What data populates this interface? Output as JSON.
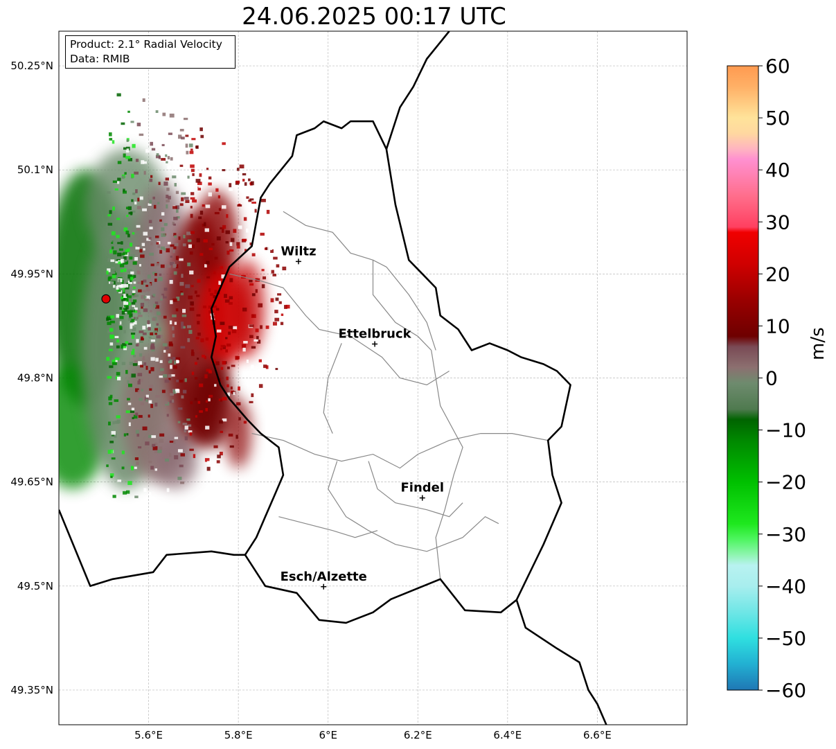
{
  "title": "24.06.2025 00:17 UTC",
  "info_box": {
    "line1": "Product: 2.1° Radial Velocity",
    "line2": "Data: RMIB"
  },
  "map": {
    "lon_min": 5.4,
    "lon_max": 6.8,
    "lat_min": 49.3,
    "lat_max": 50.3,
    "lon_ticks": [
      {
        "v": 5.6,
        "label": "5.6°E"
      },
      {
        "v": 5.8,
        "label": "5.8°E"
      },
      {
        "v": 6.0,
        "label": "6°E"
      },
      {
        "v": 6.2,
        "label": "6.2°E"
      },
      {
        "v": 6.4,
        "label": "6.4°E"
      },
      {
        "v": 6.6,
        "label": "6.6°E"
      }
    ],
    "lat_ticks": [
      {
        "v": 50.25,
        "label": "50.25°N"
      },
      {
        "v": 50.1,
        "label": "50.1°N"
      },
      {
        "v": 49.95,
        "label": "49.95°N"
      },
      {
        "v": 49.8,
        "label": "49.8°N"
      },
      {
        "v": 49.65,
        "label": "49.65°N"
      },
      {
        "v": 49.5,
        "label": "49.5°N"
      },
      {
        "v": 49.35,
        "label": "49.35°N"
      }
    ],
    "radar_site": {
      "lon": 5.505,
      "lat": 49.914
    },
    "cities": [
      {
        "name": "Wiltz",
        "lon": 5.934,
        "lat": 49.968
      },
      {
        "name": "Ettelbruck",
        "lon": 6.104,
        "lat": 49.849
      },
      {
        "name": "Findel",
        "lon": 6.21,
        "lat": 49.627
      },
      {
        "name": "Esch/Alzette",
        "lon": 5.99,
        "lat": 49.499
      }
    ],
    "country_border": [
      [
        5.815,
        49.545
      ],
      [
        5.86,
        49.5
      ],
      [
        5.93,
        49.49
      ],
      [
        5.98,
        49.451
      ],
      [
        6.04,
        49.447
      ],
      [
        6.1,
        49.462
      ],
      [
        6.14,
        49.481
      ],
      [
        6.25,
        49.51
      ],
      [
        6.305,
        49.465
      ],
      [
        6.385,
        49.462
      ],
      [
        6.42,
        49.48
      ],
      [
        6.48,
        49.56
      ],
      [
        6.52,
        49.62
      ],
      [
        6.5,
        49.66
      ],
      [
        6.49,
        49.71
      ],
      [
        6.52,
        49.73
      ],
      [
        6.54,
        49.79
      ],
      [
        6.51,
        49.81
      ],
      [
        6.48,
        49.82
      ],
      [
        6.43,
        49.83
      ],
      [
        6.4,
        49.84
      ],
      [
        6.36,
        49.85
      ],
      [
        6.32,
        49.84
      ],
      [
        6.29,
        49.87
      ],
      [
        6.25,
        49.89
      ],
      [
        6.24,
        49.93
      ],
      [
        6.21,
        49.95
      ],
      [
        6.18,
        49.97
      ],
      [
        6.15,
        50.05
      ],
      [
        6.14,
        50.09
      ],
      [
        6.13,
        50.13
      ],
      [
        6.1,
        50.17
      ],
      [
        6.05,
        50.17
      ],
      [
        6.03,
        50.16
      ],
      [
        5.99,
        50.17
      ],
      [
        5.97,
        50.16
      ],
      [
        5.93,
        50.15
      ],
      [
        5.92,
        50.12
      ],
      [
        5.87,
        50.08
      ],
      [
        5.85,
        50.06
      ],
      [
        5.83,
        49.99
      ],
      [
        5.78,
        49.96
      ],
      [
        5.74,
        49.9
      ],
      [
        5.75,
        49.86
      ],
      [
        5.74,
        49.83
      ],
      [
        5.76,
        49.79
      ],
      [
        5.78,
        49.77
      ],
      [
        5.82,
        49.74
      ],
      [
        5.85,
        49.72
      ],
      [
        5.89,
        49.7
      ],
      [
        5.9,
        49.66
      ],
      [
        5.88,
        49.63
      ],
      [
        5.86,
        49.6
      ],
      [
        5.84,
        49.57
      ],
      [
        5.815,
        49.545
      ]
    ],
    "french_border": [
      [
        5.4,
        49.61
      ],
      [
        5.47,
        49.5
      ],
      [
        5.52,
        49.51
      ],
      [
        5.61,
        49.52
      ],
      [
        5.64,
        49.545
      ],
      [
        5.74,
        49.55
      ],
      [
        5.79,
        49.545
      ],
      [
        5.815,
        49.545
      ]
    ],
    "german_border": [
      [
        6.42,
        49.48
      ],
      [
        6.44,
        49.44
      ],
      [
        6.51,
        49.41
      ],
      [
        6.56,
        49.39
      ],
      [
        6.58,
        49.35
      ],
      [
        6.6,
        49.33
      ],
      [
        6.62,
        49.3
      ]
    ],
    "belgian_border": [
      [
        6.13,
        50.13
      ],
      [
        6.16,
        50.19
      ],
      [
        6.19,
        50.22
      ],
      [
        6.22,
        50.26
      ],
      [
        6.27,
        50.3
      ]
    ],
    "canton_borders": [
      [
        [
          5.9,
          50.04
        ],
        [
          5.95,
          50.02
        ],
        [
          6.01,
          50.01
        ],
        [
          6.05,
          49.98
        ],
        [
          6.1,
          49.97
        ],
        [
          6.13,
          49.96
        ]
      ],
      [
        [
          5.78,
          49.95
        ],
        [
          5.85,
          49.94
        ],
        [
          5.9,
          49.93
        ],
        [
          5.95,
          49.89
        ],
        [
          5.98,
          49.87
        ],
        [
          6.05,
          49.86
        ],
        [
          6.12,
          49.83
        ],
        [
          6.16,
          49.8
        ],
        [
          6.22,
          49.79
        ],
        [
          6.27,
          49.81
        ]
      ],
      [
        [
          6.1,
          49.97
        ],
        [
          6.1,
          49.92
        ],
        [
          6.15,
          49.88
        ],
        [
          6.2,
          49.86
        ],
        [
          6.23,
          49.84
        ]
      ],
      [
        [
          6.03,
          49.85
        ],
        [
          6.0,
          49.8
        ],
        [
          5.99,
          49.75
        ],
        [
          6.01,
          49.72
        ]
      ],
      [
        [
          5.83,
          49.72
        ],
        [
          5.9,
          49.71
        ],
        [
          5.97,
          49.69
        ],
        [
          6.03,
          49.68
        ],
        [
          6.1,
          49.69
        ],
        [
          6.16,
          49.67
        ],
        [
          6.2,
          49.69
        ],
        [
          6.27,
          49.71
        ],
        [
          6.34,
          49.72
        ],
        [
          6.41,
          49.72
        ],
        [
          6.49,
          49.71
        ]
      ],
      [
        [
          6.02,
          49.68
        ],
        [
          6.0,
          49.64
        ],
        [
          6.04,
          49.6
        ],
        [
          6.09,
          49.58
        ],
        [
          6.15,
          49.56
        ],
        [
          6.22,
          49.55
        ],
        [
          6.3,
          49.57
        ],
        [
          6.35,
          49.6
        ],
        [
          6.38,
          49.59
        ]
      ],
      [
        [
          5.89,
          49.6
        ],
        [
          5.95,
          49.59
        ],
        [
          6.01,
          49.58
        ],
        [
          6.06,
          49.57
        ],
        [
          6.11,
          49.58
        ]
      ],
      [
        [
          6.09,
          49.68
        ],
        [
          6.11,
          49.64
        ],
        [
          6.15,
          49.62
        ],
        [
          6.22,
          49.61
        ],
        [
          6.27,
          49.6
        ],
        [
          6.3,
          49.62
        ]
      ],
      [
        [
          6.23,
          49.84
        ],
        [
          6.25,
          49.76
        ],
        [
          6.3,
          49.7
        ],
        [
          6.28,
          49.66
        ],
        [
          6.26,
          49.61
        ],
        [
          6.24,
          49.57
        ],
        [
          6.25,
          49.51
        ]
      ],
      [
        [
          6.13,
          49.96
        ],
        [
          6.18,
          49.92
        ],
        [
          6.22,
          49.88
        ],
        [
          6.24,
          49.84
        ]
      ]
    ]
  },
  "colorbar": {
    "label": "m/s",
    "vmin": -60,
    "vmax": 60,
    "ticks": [
      {
        "v": 60,
        "label": "60"
      },
      {
        "v": 50,
        "label": "50"
      },
      {
        "v": 40,
        "label": "40"
      },
      {
        "v": 30,
        "label": "30"
      },
      {
        "v": 20,
        "label": "20"
      },
      {
        "v": 10,
        "label": "10"
      },
      {
        "v": 0,
        "label": "0"
      },
      {
        "v": -10,
        "label": "−10"
      },
      {
        "v": -20,
        "label": "−20"
      },
      {
        "v": -30,
        "label": "−30"
      },
      {
        "v": -40,
        "label": "−40"
      },
      {
        "v": -50,
        "label": "−50"
      },
      {
        "v": -60,
        "label": "−60"
      }
    ],
    "stops": [
      {
        "v": -60,
        "color": "#1f77b4"
      },
      {
        "v": -55,
        "color": "#22b0d2"
      },
      {
        "v": -50,
        "color": "#2fdfe0"
      },
      {
        "v": -45,
        "color": "#6fe6e6"
      },
      {
        "v": -40,
        "color": "#a8eeee"
      },
      {
        "v": -36,
        "color": "#b8f2f0"
      },
      {
        "v": -34,
        "color": "#8ff5b0"
      },
      {
        "v": -31,
        "color": "#4ef560"
      },
      {
        "v": -28,
        "color": "#1ee81e"
      },
      {
        "v": -20,
        "color": "#00c000"
      },
      {
        "v": -12,
        "color": "#008800"
      },
      {
        "v": -8,
        "color": "#006400"
      },
      {
        "v": -6,
        "color": "#4f7a4f"
      },
      {
        "v": -1,
        "color": "#6e8b6e"
      },
      {
        "v": 2,
        "color": "#8c7070"
      },
      {
        "v": 6,
        "color": "#7a4a55"
      },
      {
        "v": 8,
        "color": "#6e0000"
      },
      {
        "v": 15,
        "color": "#9a0000"
      },
      {
        "v": 22,
        "color": "#d00000"
      },
      {
        "v": 28,
        "color": "#f00000"
      },
      {
        "v": 29,
        "color": "#ff4060"
      },
      {
        "v": 35,
        "color": "#ff6e8c"
      },
      {
        "v": 42,
        "color": "#ff90d0"
      },
      {
        "v": 44,
        "color": "#ffb4c0"
      },
      {
        "v": 47,
        "color": "#ffd8a0"
      },
      {
        "v": 50,
        "color": "#ffe39a"
      },
      {
        "v": 56,
        "color": "#ffb066"
      },
      {
        "v": 60,
        "color": "#ff9a50"
      }
    ]
  },
  "radar_echoes": [
    {
      "lon": 5.46,
      "lat": 49.93,
      "rx": 0.09,
      "ry": 0.17,
      "color": "#006e00",
      "opacity": 0.85
    },
    {
      "lon": 5.43,
      "lat": 49.73,
      "rx": 0.08,
      "ry": 0.09,
      "color": "#008800",
      "opacity": 0.8
    },
    {
      "lon": 5.55,
      "lat": 49.84,
      "rx": 0.1,
      "ry": 0.2,
      "color": "#6b8a6b",
      "opacity": 0.85
    },
    {
      "lon": 5.55,
      "lat": 50.05,
      "rx": 0.09,
      "ry": 0.08,
      "color": "#6b8a6b",
      "opacity": 0.8
    },
    {
      "lon": 5.62,
      "lat": 49.75,
      "rx": 0.08,
      "ry": 0.1,
      "color": "#8c7070",
      "opacity": 0.85
    },
    {
      "lon": 5.63,
      "lat": 49.98,
      "rx": 0.06,
      "ry": 0.1,
      "color": "#8a6a72",
      "opacity": 0.75
    },
    {
      "lon": 5.71,
      "lat": 49.87,
      "rx": 0.07,
      "ry": 0.17,
      "color": "#7a0000",
      "opacity": 0.85
    },
    {
      "lon": 5.75,
      "lat": 50.0,
      "rx": 0.05,
      "ry": 0.07,
      "color": "#8a0000",
      "opacity": 0.8
    },
    {
      "lon": 5.77,
      "lat": 49.89,
      "rx": 0.06,
      "ry": 0.07,
      "color": "#d80000",
      "opacity": 0.85
    },
    {
      "lon": 5.74,
      "lat": 49.76,
      "rx": 0.05,
      "ry": 0.06,
      "color": "#6e0000",
      "opacity": 0.85
    },
    {
      "lon": 5.82,
      "lat": 49.9,
      "rx": 0.04,
      "ry": 0.07,
      "color": "#c00000",
      "opacity": 0.7
    },
    {
      "lon": 5.8,
      "lat": 49.72,
      "rx": 0.03,
      "ry": 0.05,
      "color": "#8a0000",
      "opacity": 0.7
    },
    {
      "lon": 5.66,
      "lat": 49.68,
      "rx": 0.05,
      "ry": 0.04,
      "color": "#8a6a72",
      "opacity": 0.75
    }
  ]
}
